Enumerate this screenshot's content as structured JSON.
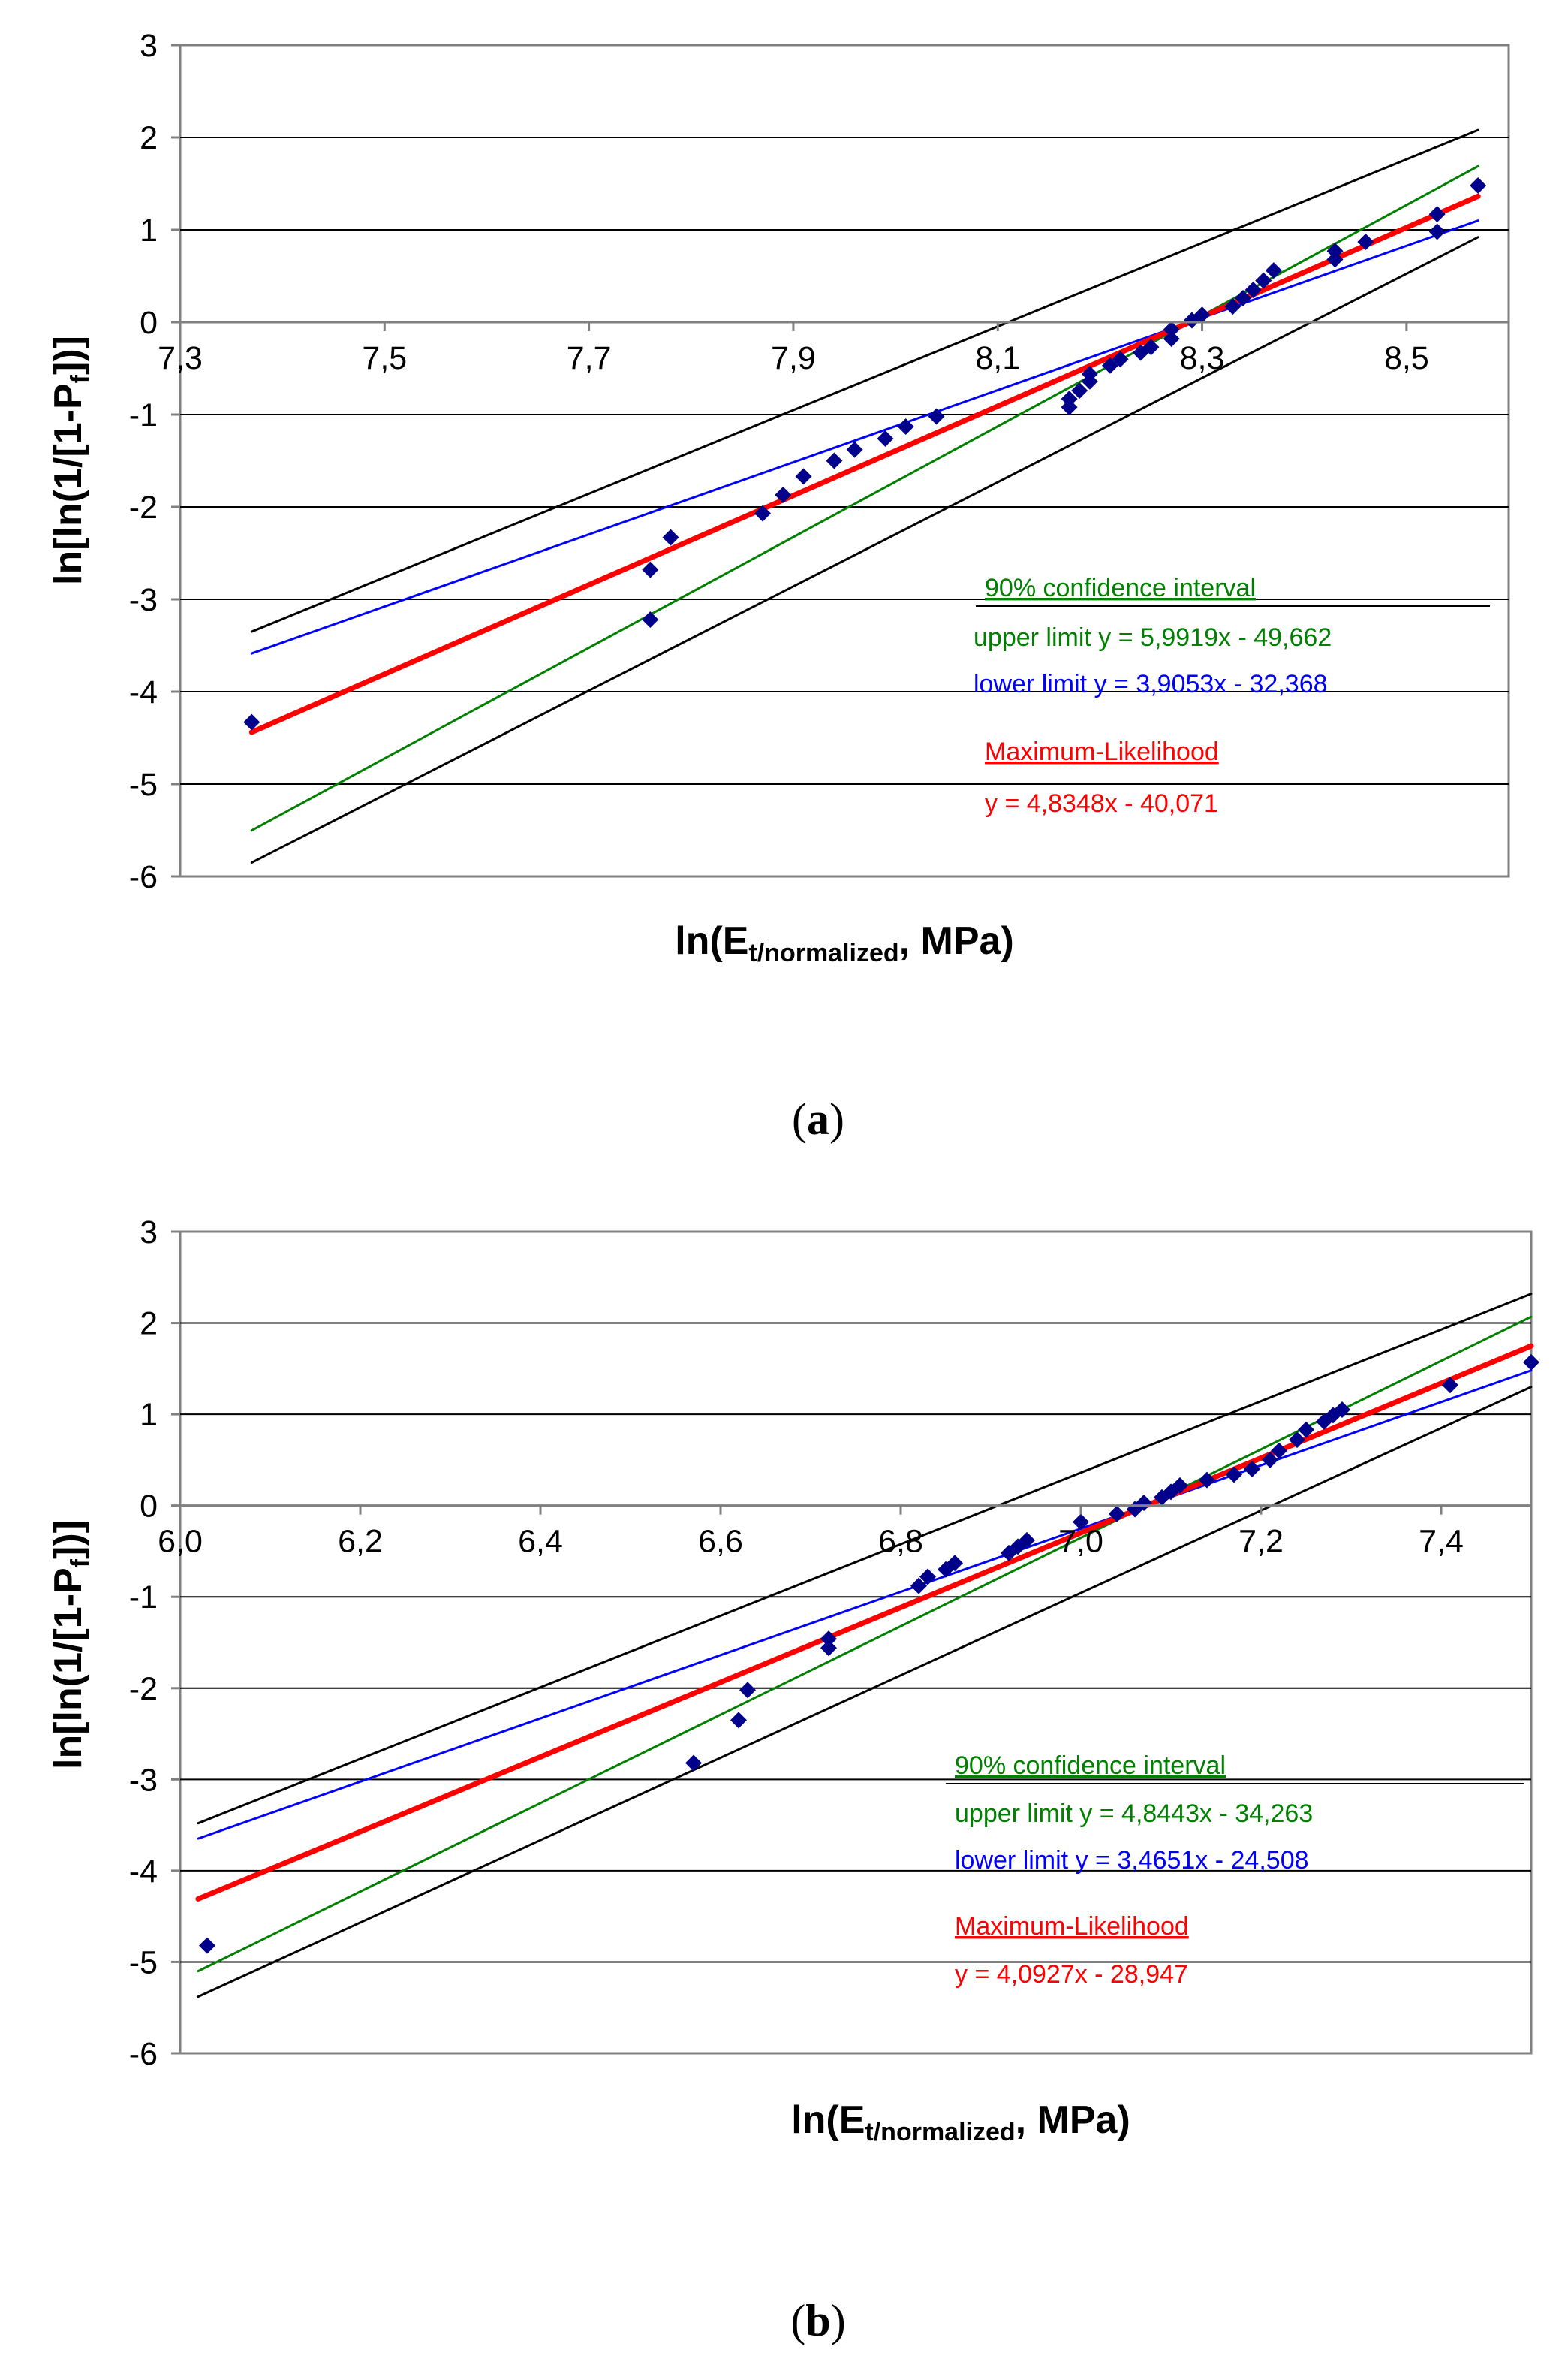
{
  "chart_data": [
    {
      "type": "scatter",
      "caption_open": "(",
      "caption_letter": "a",
      "caption_close": ")",
      "xlim": [
        7.3,
        8.6
      ],
      "ylim": [
        -6,
        3
      ],
      "grid": true,
      "x_ticks": [
        "7,3",
        "7,5",
        "7,7",
        "7,9",
        "8,1",
        "8,3",
        "8,5"
      ],
      "x_tick_values": [
        7.3,
        7.5,
        7.7,
        7.9,
        8.1,
        8.3,
        8.5
      ],
      "y_ticks": [
        "3",
        "2",
        "1",
        "0",
        "-1",
        "-2",
        "-3",
        "-4",
        "-5",
        "-6"
      ],
      "y_tick_values": [
        3,
        2,
        1,
        0,
        -1,
        -2,
        -3,
        -4,
        -5,
        -6
      ],
      "xlabel_main": "ln(E",
      "xlabel_sub": "t/normalized",
      "xlabel_end": ",  MPa)",
      "ylabel_main": "ln[ln(1/[1-P",
      "ylabel_sub": "f",
      "ylabel_end": "])]",
      "points": [
        [
          7.37,
          -4.33
        ],
        [
          7.76,
          -3.22
        ],
        [
          7.76,
          -2.68
        ],
        [
          7.78,
          -2.33
        ],
        [
          7.87,
          -2.07
        ],
        [
          7.89,
          -1.87
        ],
        [
          7.91,
          -1.67
        ],
        [
          7.94,
          -1.5
        ],
        [
          7.96,
          -1.38
        ],
        [
          7.99,
          -1.26
        ],
        [
          8.01,
          -1.13
        ],
        [
          8.04,
          -1.02
        ],
        [
          8.17,
          -0.92
        ],
        [
          8.17,
          -0.83
        ],
        [
          8.18,
          -0.74
        ],
        [
          8.19,
          -0.64
        ],
        [
          8.19,
          -0.56
        ],
        [
          8.21,
          -0.47
        ],
        [
          8.22,
          -0.4
        ],
        [
          8.24,
          -0.33
        ],
        [
          8.25,
          -0.27
        ],
        [
          8.27,
          -0.18
        ],
        [
          8.27,
          -0.08
        ],
        [
          8.29,
          0.02
        ],
        [
          8.3,
          0.08
        ],
        [
          8.33,
          0.17
        ],
        [
          8.34,
          0.26
        ],
        [
          8.35,
          0.35
        ],
        [
          8.36,
          0.45
        ],
        [
          8.37,
          0.56
        ],
        [
          8.43,
          0.68
        ],
        [
          8.43,
          0.77
        ],
        [
          8.46,
          0.87
        ],
        [
          8.53,
          0.98
        ],
        [
          8.53,
          1.17
        ],
        [
          8.57,
          1.48
        ]
      ],
      "series": [
        {
          "name": "Maximum-Likelihood",
          "color": "#ff0000",
          "slope": 4.8348,
          "intercept": -40.071,
          "x": [
            7.37,
            8.57
          ]
        },
        {
          "name": "upper limit",
          "color": "#008000",
          "slope": 5.9919,
          "intercept": -49.662,
          "x": [
            7.37,
            8.57
          ]
        },
        {
          "name": "lower limit",
          "color": "#0000ff",
          "slope": 3.9053,
          "intercept": -32.368,
          "x": [
            7.37,
            8.57
          ]
        },
        {
          "name": "confidence bound upper",
          "color": "#000000",
          "x": [
            7.37,
            8.57
          ],
          "y": [
            -3.35,
            2.08
          ]
        },
        {
          "name": "confidence bound lower",
          "color": "#000000",
          "x": [
            7.37,
            8.57
          ],
          "y": [
            -5.85,
            0.92
          ]
        }
      ],
      "annotations": {
        "ci_title": "90% confidence interval",
        "upper_eq": "upper limit y = 5,9919x - 49,662",
        "lower_eq": "lower limit y = 3,9053x - 32,368",
        "ml_title": "Maximum-Likelihood",
        "ml_eq": "y = 4,8348x - 40,071"
      },
      "colors": {
        "marker": "#00008b",
        "grid": "#000000",
        "ci_green": "#008000",
        "lower_blue": "#0000ff",
        "ml_red": "#ff0000"
      }
    },
    {
      "type": "scatter",
      "caption_open": "(",
      "caption_letter": "b",
      "caption_close": ")",
      "xlim": [
        6.0,
        7.5
      ],
      "ylim": [
        -6,
        3
      ],
      "grid": true,
      "x_ticks": [
        "6,0",
        "6,2",
        "6,4",
        "6,6",
        "6,8",
        "7,0",
        "7,2",
        "7,4"
      ],
      "x_tick_values": [
        6.0,
        6.2,
        6.4,
        6.6,
        6.8,
        7.0,
        7.2,
        7.4
      ],
      "y_ticks": [
        "3",
        "2",
        "1",
        "0",
        "-1",
        "-2",
        "-3",
        "-4",
        "-5",
        "-6"
      ],
      "y_tick_values": [
        3,
        2,
        1,
        0,
        -1,
        -2,
        -3,
        -4,
        -5,
        -6
      ],
      "xlabel_main": "ln(E",
      "xlabel_sub": "t/normalized",
      "xlabel_end": ",  MPa)",
      "ylabel_main": "ln[ln(1/[1-P",
      "ylabel_sub": "f",
      "ylabel_end": "])]",
      "points": [
        [
          6.03,
          -4.82
        ],
        [
          6.57,
          -2.82
        ],
        [
          6.62,
          -2.35
        ],
        [
          6.63,
          -2.02
        ],
        [
          6.72,
          -1.56
        ],
        [
          6.72,
          -1.46
        ],
        [
          6.82,
          -0.88
        ],
        [
          6.83,
          -0.78
        ],
        [
          6.85,
          -0.7
        ],
        [
          6.86,
          -0.63
        ],
        [
          6.92,
          -0.52
        ],
        [
          6.93,
          -0.45
        ],
        [
          6.94,
          -0.38
        ],
        [
          7.0,
          -0.18
        ],
        [
          7.04,
          -0.09
        ],
        [
          7.06,
          -0.04
        ],
        [
          7.07,
          0.03
        ],
        [
          7.09,
          0.09
        ],
        [
          7.1,
          0.15
        ],
        [
          7.11,
          0.22
        ],
        [
          7.14,
          0.28
        ],
        [
          7.17,
          0.34
        ],
        [
          7.19,
          0.4
        ],
        [
          7.21,
          0.5
        ],
        [
          7.22,
          0.6
        ],
        [
          7.24,
          0.72
        ],
        [
          7.25,
          0.83
        ],
        [
          7.27,
          0.92
        ],
        [
          7.28,
          0.99
        ],
        [
          7.29,
          1.05
        ],
        [
          7.41,
          1.32
        ],
        [
          7.5,
          1.57
        ]
      ],
      "series": [
        {
          "name": "Maximum-Likelihood",
          "color": "#ff0000",
          "slope": 4.0927,
          "intercept": -28.947,
          "x": [
            6.02,
            7.5
          ]
        },
        {
          "name": "upper limit",
          "color": "#008000",
          "slope": 4.8443,
          "intercept": -34.263,
          "x": [
            6.02,
            7.5
          ]
        },
        {
          "name": "lower limit",
          "color": "#0000ff",
          "slope": 3.4651,
          "intercept": -24.508,
          "x": [
            6.02,
            7.5
          ]
        },
        {
          "name": "confidence bound upper",
          "color": "#000000",
          "x": [
            6.02,
            7.5
          ],
          "y": [
            -3.48,
            2.32
          ]
        },
        {
          "name": "confidence bound lower",
          "color": "#000000",
          "x": [
            6.02,
            7.5
          ],
          "y": [
            -5.38,
            1.3
          ]
        }
      ],
      "annotations": {
        "ci_title": "90% confidence interval",
        "upper_eq": "upper limit y = 4,8443x - 34,263",
        "lower_eq": "lower limit y = 3,4651x - 24,508",
        "ml_title": "Maximum-Likelihood",
        "ml_eq": "y = 4,0927x - 28,947"
      },
      "colors": {
        "marker": "#00008b",
        "grid": "#000000",
        "ci_green": "#008000",
        "lower_blue": "#0000ff",
        "ml_red": "#ff0000"
      }
    }
  ]
}
